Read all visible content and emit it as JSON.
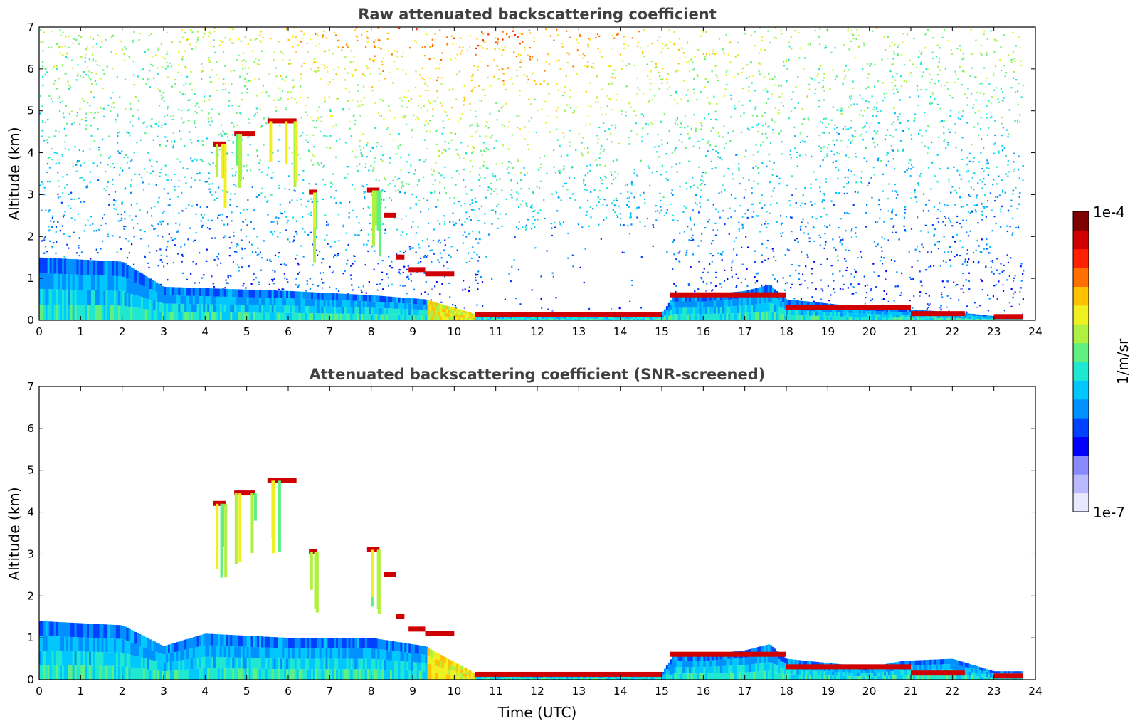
{
  "figure": {
    "colorbar": {
      "max_label": "1e-4",
      "min_label": "1e-7",
      "unit": "1/m/sr",
      "colors": [
        "#e8e8ff",
        "#b9b9ff",
        "#8a8aff",
        "#0000ff",
        "#0040ff",
        "#0090ff",
        "#00c8ff",
        "#20e8d0",
        "#60f080",
        "#b0f040",
        "#f0f020",
        "#ffc000",
        "#ff7000",
        "#ff2000",
        "#d00000",
        "#800000"
      ]
    }
  },
  "chart_data": [
    {
      "type": "heatmap",
      "title": "Raw attenuated backscattering coefficient",
      "xlabel": "",
      "ylabel": "Altitude (km)",
      "xlim": [
        0,
        24
      ],
      "ylim": [
        0,
        7
      ],
      "x_ticks": [
        "0",
        "1",
        "2",
        "3",
        "4",
        "5",
        "6",
        "7",
        "8",
        "9",
        "10",
        "11",
        "12",
        "13",
        "14",
        "15",
        "16",
        "17",
        "18",
        "19",
        "20",
        "21",
        "22",
        "23",
        "24"
      ],
      "y_ticks": [
        "0",
        "1",
        "2",
        "3",
        "4",
        "5",
        "6",
        "7"
      ],
      "boundary_layer_top_km": [
        [
          0,
          1.5
        ],
        [
          2,
          1.4
        ],
        [
          3,
          0.8
        ],
        [
          6,
          0.7
        ],
        [
          8,
          0.6
        ],
        [
          9.3,
          0.5
        ],
        [
          10.5,
          0.15
        ],
        [
          15,
          0.15
        ],
        [
          15.3,
          0.6
        ],
        [
          16,
          0.6
        ],
        [
          17,
          0.7
        ],
        [
          17.6,
          0.85
        ],
        [
          18,
          0.5
        ],
        [
          20,
          0.3
        ],
        [
          22,
          0.2
        ],
        [
          23,
          0.1
        ],
        [
          23.7,
          0.1
        ]
      ],
      "cloud_layers": [
        {
          "x0": 4.2,
          "x1": 4.5,
          "y": 4.2
        },
        {
          "x0": 4.7,
          "x1": 5.2,
          "y": 4.45
        },
        {
          "x0": 5.5,
          "x1": 6.2,
          "y": 4.75
        },
        {
          "x0": 6.5,
          "x1": 6.7,
          "y": 3.05
        },
        {
          "x0": 7.9,
          "x1": 8.2,
          "y": 3.1
        },
        {
          "x0": 8.3,
          "x1": 8.6,
          "y": 2.5
        },
        {
          "x0": 8.6,
          "x1": 8.8,
          "y": 1.5
        },
        {
          "x0": 8.9,
          "x1": 9.3,
          "y": 1.2
        },
        {
          "x0": 9.3,
          "x1": 10.0,
          "y": 1.1
        },
        {
          "x0": 10.5,
          "x1": 15.0,
          "y": 0.12
        },
        {
          "x0": 15.2,
          "x1": 18.0,
          "y": 0.6
        },
        {
          "x0": 18.0,
          "x1": 21.0,
          "y": 0.3
        },
        {
          "x0": 21.0,
          "x1": 22.3,
          "y": 0.15
        },
        {
          "x0": 23.0,
          "x1": 23.7,
          "y": 0.08
        }
      ],
      "noise_background": true
    },
    {
      "type": "heatmap",
      "title": "Attenuated backscattering coefficient (SNR-screened)",
      "xlabel": "Time (UTC)",
      "ylabel": "Altitude (km)",
      "xlim": [
        0,
        24
      ],
      "ylim": [
        0,
        7
      ],
      "x_ticks": [
        "0",
        "1",
        "2",
        "3",
        "4",
        "5",
        "6",
        "7",
        "8",
        "9",
        "10",
        "11",
        "12",
        "13",
        "14",
        "15",
        "16",
        "17",
        "18",
        "19",
        "20",
        "21",
        "22",
        "23",
        "24"
      ],
      "y_ticks": [
        "0",
        "1",
        "2",
        "3",
        "4",
        "5",
        "6",
        "7"
      ],
      "boundary_layer_top_km": [
        [
          0,
          1.4
        ],
        [
          2,
          1.3
        ],
        [
          3,
          0.8
        ],
        [
          4,
          1.1
        ],
        [
          6,
          1.0
        ],
        [
          8,
          1.0
        ],
        [
          9.3,
          0.8
        ],
        [
          10.5,
          0.15
        ],
        [
          15,
          0.15
        ],
        [
          15.3,
          0.6
        ],
        [
          16,
          0.6
        ],
        [
          17,
          0.7
        ],
        [
          17.6,
          0.85
        ],
        [
          18,
          0.5
        ],
        [
          20,
          0.3
        ],
        [
          20.8,
          0.45
        ],
        [
          22,
          0.5
        ],
        [
          23,
          0.2
        ],
        [
          23.7,
          0.2
        ]
      ],
      "cloud_layers": [
        {
          "x0": 4.2,
          "x1": 4.5,
          "y": 4.2
        },
        {
          "x0": 4.7,
          "x1": 5.2,
          "y": 4.45
        },
        {
          "x0": 5.5,
          "x1": 6.2,
          "y": 4.75
        },
        {
          "x0": 6.5,
          "x1": 6.7,
          "y": 3.05
        },
        {
          "x0": 7.9,
          "x1": 8.2,
          "y": 3.1
        },
        {
          "x0": 8.3,
          "x1": 8.6,
          "y": 2.5
        },
        {
          "x0": 8.6,
          "x1": 8.8,
          "y": 1.5
        },
        {
          "x0": 8.9,
          "x1": 9.3,
          "y": 1.2
        },
        {
          "x0": 9.3,
          "x1": 10.0,
          "y": 1.1
        },
        {
          "x0": 10.5,
          "x1": 15.0,
          "y": 0.12
        },
        {
          "x0": 15.2,
          "x1": 18.0,
          "y": 0.6
        },
        {
          "x0": 18.0,
          "x1": 21.0,
          "y": 0.3
        },
        {
          "x0": 21.0,
          "x1": 22.3,
          "y": 0.15
        },
        {
          "x0": 23.0,
          "x1": 23.7,
          "y": 0.08
        }
      ],
      "noise_background": false
    }
  ]
}
